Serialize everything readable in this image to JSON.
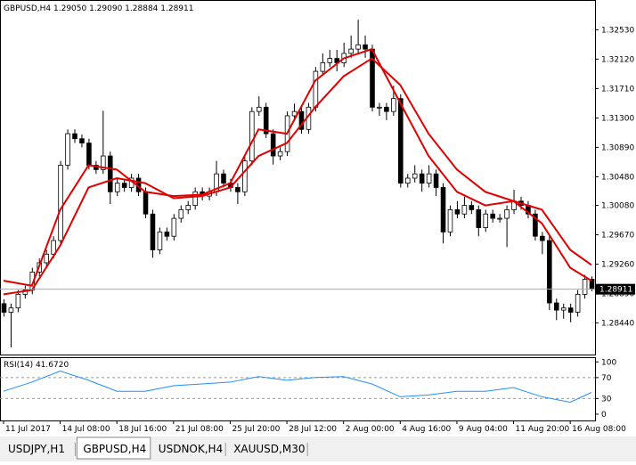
{
  "window": {
    "info_line": "GBPUSD,H4  1.29050 1.29090 1.28884 1.28911",
    "tabs": [
      "USDJPY,H1",
      "GBPUSD,H4",
      "USDNOK,H4",
      "XAUUSD,M30"
    ],
    "active_tab": 1
  },
  "chart_data": [
    {
      "type": "candlestick",
      "up_color": "#ffffff",
      "down_color": "#000000",
      "open": [
        1.2871,
        1.2859,
        1.2865,
        1.2884,
        1.289,
        1.2915,
        1.2928,
        1.294,
        1.2959,
        1.3064,
        1.3108,
        1.3101,
        1.3095,
        1.3064,
        1.3058,
        1.3077,
        1.3027,
        1.3039,
        1.3033,
        1.3046,
        1.3027,
        1.2996,
        1.2946,
        1.2971,
        1.2965,
        1.299,
        1.3002,
        1.3008,
        1.3027,
        1.3021,
        1.3027,
        1.3052,
        1.3039,
        1.3033,
        1.3027,
        1.307,
        1.3139,
        1.3145,
        1.3108,
        1.3077,
        1.3083,
        1.3133,
        1.3139,
        1.3114,
        1.3145,
        1.3195,
        1.3207,
        1.3213,
        1.3207,
        1.322,
        1.3226,
        1.3232,
        1.3226,
        1.3145,
        1.3145,
        1.3139,
        1.3157,
        1.3039,
        1.3046,
        1.3052,
        1.3039,
        1.3052,
        1.3033,
        1.2971,
        1.3002,
        1.2996,
        1.3008,
        1.3002,
        1.2977,
        1.2996,
        1.299,
        1.299,
        1.3002,
        1.3014,
        1.3008,
        1.2996,
        1.2965,
        1.2959,
        1.2872,
        1.2862,
        1.2865,
        1.2859,
        1.2884,
        1.2905
      ],
      "high": [
        1.2877,
        1.2871,
        1.289,
        1.2896,
        1.2921,
        1.2934,
        1.2946,
        1.2965,
        1.307,
        1.3114,
        1.3114,
        1.3107,
        1.3101,
        1.307,
        1.314,
        1.3083,
        1.3045,
        1.3045,
        1.3052,
        1.3052,
        1.3033,
        1.3002,
        1.2977,
        1.2977,
        1.2996,
        1.3008,
        1.3014,
        1.3033,
        1.3033,
        1.3033,
        1.307,
        1.3058,
        1.3045,
        1.3039,
        1.3076,
        1.3145,
        1.316,
        1.3151,
        1.3114,
        1.3089,
        1.3139,
        1.315,
        1.3145,
        1.3151,
        1.3201,
        1.322,
        1.3225,
        1.3225,
        1.3235,
        1.3245,
        1.3267,
        1.3245,
        1.3232,
        1.3151,
        1.3151,
        1.3175,
        1.3163,
        1.3052,
        1.3064,
        1.3058,
        1.3064,
        1.3058,
        1.3039,
        1.3008,
        1.3014,
        1.302,
        1.3014,
        1.3008,
        1.3002,
        1.3002,
        1.2996,
        1.3008,
        1.303,
        1.302,
        1.3014,
        1.3002,
        1.2971,
        1.2965,
        1.2878,
        1.2871,
        1.2871,
        1.289,
        1.2911,
        1.2909
      ],
      "low": [
        1.2853,
        1.281,
        1.2859,
        1.2878,
        1.2884,
        1.2909,
        1.2922,
        1.2934,
        1.2953,
        1.3058,
        1.3095,
        1.3089,
        1.3058,
        1.3052,
        1.3052,
        1.301,
        1.3021,
        1.3027,
        1.3027,
        1.3021,
        1.299,
        1.2935,
        1.294,
        1.2959,
        1.2959,
        1.2984,
        1.2996,
        1.3002,
        1.3015,
        1.3015,
        1.3021,
        1.3033,
        1.3027,
        1.301,
        1.3021,
        1.3064,
        1.3133,
        1.3102,
        1.3065,
        1.3071,
        1.3077,
        1.3127,
        1.3108,
        1.3108,
        1.3139,
        1.3189,
        1.3201,
        1.3195,
        1.3201,
        1.3214,
        1.322,
        1.3214,
        1.3139,
        1.3133,
        1.3127,
        1.3133,
        1.3033,
        1.3033,
        1.304,
        1.3027,
        1.3033,
        1.3021,
        1.2955,
        1.2965,
        1.299,
        1.299,
        1.2996,
        1.2965,
        1.2971,
        1.2984,
        1.2984,
        1.295,
        1.2996,
        1.3002,
        1.299,
        1.2959,
        1.294,
        1.2862,
        1.2848,
        1.285,
        1.2845,
        1.2853,
        1.2878,
        1.28884
      ],
      "close": [
        1.2859,
        1.2865,
        1.2884,
        1.289,
        1.2915,
        1.2928,
        1.294,
        1.2959,
        1.3064,
        1.3108,
        1.3101,
        1.3095,
        1.3064,
        1.3058,
        1.3077,
        1.3027,
        1.3039,
        1.3033,
        1.3046,
        1.3027,
        1.2996,
        1.2946,
        1.2971,
        1.2965,
        1.299,
        1.3002,
        1.3008,
        1.3027,
        1.3021,
        1.3027,
        1.3052,
        1.3039,
        1.3033,
        1.3027,
        1.307,
        1.3139,
        1.3145,
        1.3108,
        1.3077,
        1.3083,
        1.3133,
        1.3139,
        1.3114,
        1.3145,
        1.3195,
        1.3207,
        1.3213,
        1.3207,
        1.322,
        1.3226,
        1.3232,
        1.3226,
        1.3145,
        1.3145,
        1.3139,
        1.3157,
        1.3039,
        1.3046,
        1.3052,
        1.3039,
        1.3052,
        1.3033,
        1.2971,
        1.3002,
        1.2996,
        1.3008,
        1.3002,
        1.2977,
        1.2996,
        1.299,
        1.299,
        1.3002,
        1.3014,
        1.3008,
        1.2996,
        1.2965,
        1.2959,
        1.2872,
        1.2862,
        1.2865,
        1.2859,
        1.2884,
        1.2905,
        1.28911
      ],
      "series": [
        {
          "color": "#e00000",
          "x": [
            0,
            4,
            8,
            12,
            16,
            20,
            24,
            28,
            32,
            36,
            40,
            44,
            48,
            52,
            56,
            60,
            64,
            68,
            72,
            76,
            80,
            83
          ],
          "values": [
            1.2903,
            1.2896,
            1.3002,
            1.3064,
            1.3058,
            1.3027,
            1.3021,
            1.3023,
            1.3039,
            1.3114,
            1.3108,
            1.3182,
            1.3213,
            1.3226,
            1.3151,
            1.3077,
            1.3027,
            1.3008,
            1.3014,
            1.2983,
            1.2921,
            1.2903
          ]
        },
        {
          "color": "#e00000",
          "x": [
            0,
            4,
            8,
            12,
            16,
            20,
            24,
            28,
            32,
            36,
            40,
            44,
            48,
            52,
            56,
            60,
            64,
            68,
            72,
            76,
            80,
            83
          ],
          "values": [
            1.2884,
            1.289,
            1.2952,
            1.3033,
            1.3046,
            1.3039,
            1.3018,
            1.3021,
            1.3033,
            1.3077,
            1.3095,
            1.3145,
            1.3188,
            1.3213,
            1.3176,
            1.3108,
            1.3058,
            1.3027,
            1.3014,
            1.3002,
            1.2946,
            1.2925
          ]
        }
      ],
      "last_price": {
        "value": 1.28911,
        "label": "1.28911"
      },
      "xlim": [
        -0.5,
        83.5
      ],
      "xticks": [
        {
          "value": 0,
          "label": "11 Jul 2017"
        },
        {
          "value": 8,
          "label": "14 Jul 08:00"
        },
        {
          "value": 16,
          "label": "18 Jul 16:00"
        },
        {
          "value": 24,
          "label": "21 Jul 08:00"
        },
        {
          "value": 32,
          "label": "25 Jul 20:00"
        },
        {
          "value": 40,
          "label": "28 Jul 12:00"
        },
        {
          "value": 48,
          "label": "2 Aug 00:00"
        },
        {
          "value": 56,
          "label": "4 Aug 16:00"
        },
        {
          "value": 64,
          "label": "9 Aug 04:00"
        },
        {
          "value": 72,
          "label": "11 Aug 20:00"
        },
        {
          "value": 80,
          "label": "16 Aug 08:00"
        }
      ],
      "ylim": [
        1.28,
        1.3292
      ],
      "yticks": [
        {
          "value": 1.3253,
          "label": "1.32530"
        },
        {
          "value": 1.3212,
          "label": "1.32120"
        },
        {
          "value": 1.3171,
          "label": "1.31710"
        },
        {
          "value": 1.313,
          "label": "1.31300"
        },
        {
          "value": 1.3089,
          "label": "1.30890"
        },
        {
          "value": 1.3048,
          "label": "1.30480"
        },
        {
          "value": 1.3008,
          "label": "1.30080"
        },
        {
          "value": 1.2967,
          "label": "1.29670"
        },
        {
          "value": 1.2926,
          "label": "1.29260"
        },
        {
          "value": 1.2885,
          "label": "1.28850"
        },
        {
          "value": 1.2844,
          "label": "1.28440"
        }
      ]
    },
    {
      "type": "line",
      "title": "RSI(14) 41.6720",
      "color": "#1e90ff",
      "x": [
        0,
        4,
        8,
        12,
        16,
        20,
        24,
        28,
        32,
        36,
        40,
        44,
        48,
        52,
        56,
        60,
        64,
        68,
        72,
        76,
        80,
        83
      ],
      "values": [
        43.9,
        61.4,
        82.5,
        64.9,
        43.9,
        43.9,
        54.4,
        57.9,
        61.4,
        71.9,
        64.9,
        70.2,
        71.9,
        57.9,
        33.3,
        36.8,
        43.9,
        43.9,
        50.9,
        33.3,
        22.8,
        41.672
      ],
      "xlim": [
        -0.5,
        83.5
      ],
      "ylim": [
        -12,
        109
      ],
      "yticks": [
        100,
        70,
        30,
        0
      ],
      "levels": [
        70,
        30
      ]
    }
  ]
}
